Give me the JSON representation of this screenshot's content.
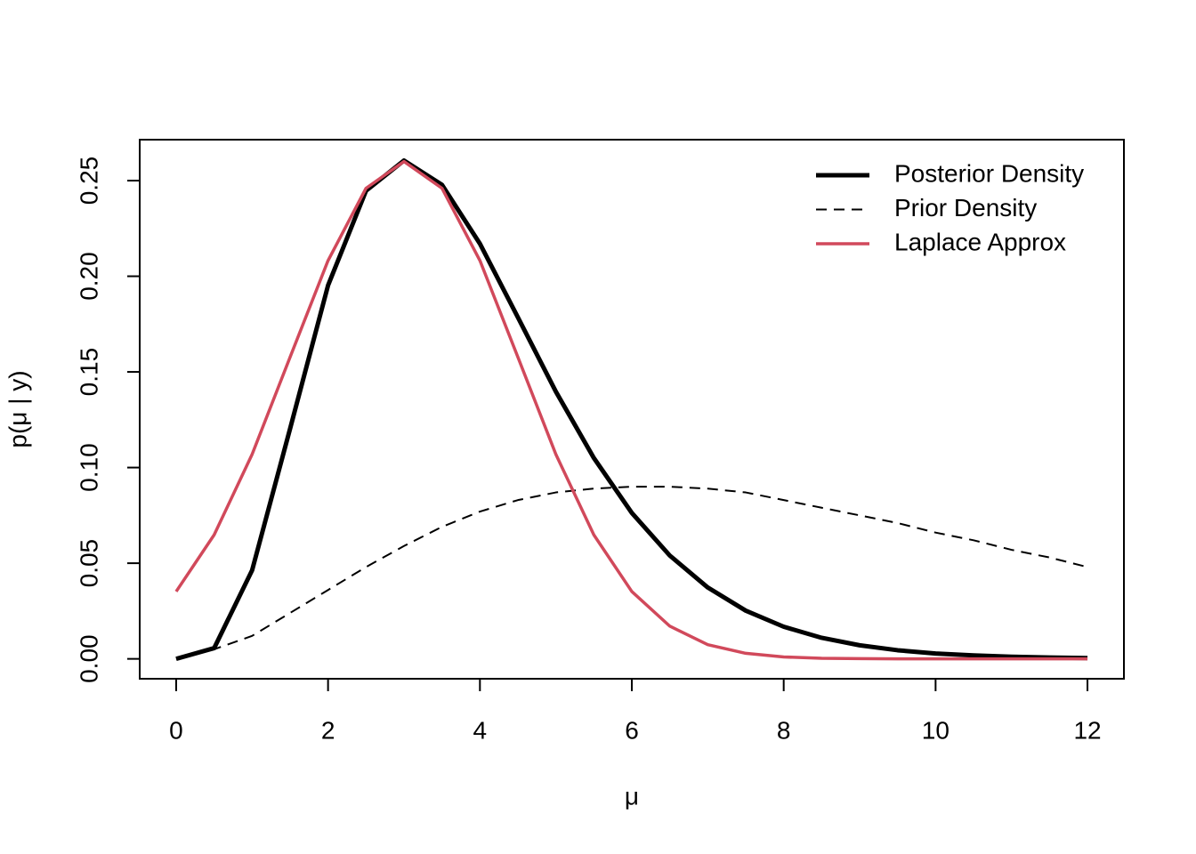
{
  "chart_data": {
    "type": "line",
    "xlabel": "μ",
    "ylabel": "p(μ | y)",
    "x": [
      0,
      0.5,
      1,
      1.5,
      2,
      2.5,
      3,
      3.5,
      4,
      4.5,
      5,
      5.5,
      6,
      6.5,
      7,
      7.5,
      8,
      8.5,
      9,
      9.5,
      10,
      10.5,
      11,
      11.5,
      12
    ],
    "series": [
      {
        "name": "Posterior Density",
        "color": "#000000",
        "width": 5,
        "dash": false,
        "values": [
          0,
          0.0056,
          0.0463,
          0.1203,
          0.1952,
          0.2447,
          0.2605,
          0.2478,
          0.217,
          0.1785,
          0.1397,
          0.105,
          0.0763,
          0.054,
          0.0373,
          0.0252,
          0.0168,
          0.011,
          0.0071,
          0.0045,
          0.0028,
          0.0018,
          0.0011,
          0.0007,
          0.0004
        ]
      },
      {
        "name": "Prior Density",
        "color": "#000000",
        "width": 2,
        "dash": true,
        "values": [
          0,
          0.005,
          0.012,
          0.024,
          0.036,
          0.048,
          0.059,
          0.069,
          0.077,
          0.083,
          0.087,
          0.089,
          0.09,
          0.09,
          0.089,
          0.087,
          0.083,
          0.079,
          0.075,
          0.071,
          0.066,
          0.062,
          0.057,
          0.053,
          0.048
        ]
      },
      {
        "name": "Laplace Approx",
        "color": "#d1495b",
        "width": 3.5,
        "dash": false,
        "values": [
          0.0352,
          0.0648,
          0.1069,
          0.1577,
          0.2082,
          0.246,
          0.26,
          0.246,
          0.2082,
          0.1577,
          0.1069,
          0.0648,
          0.0352,
          0.0171,
          0.0074,
          0.0029,
          0.001,
          0.0003,
          0.0001,
          0,
          0,
          0,
          0,
          0,
          0
        ]
      }
    ],
    "xlim": [
      -0.48,
      12.48
    ],
    "ylim": [
      -0.0104,
      0.2714
    ],
    "xticks": [
      0,
      2,
      4,
      6,
      8,
      10,
      12
    ],
    "yticks": [
      {
        "value": 0,
        "label": "0.00"
      },
      {
        "value": 0.05,
        "label": "0.05"
      },
      {
        "value": 0.1,
        "label": "0.10"
      },
      {
        "value": 0.15,
        "label": "0.15"
      },
      {
        "value": 0.2,
        "label": "0.20"
      },
      {
        "value": 0.25,
        "label": "0.25"
      }
    ],
    "legend": "top-right",
    "grid": false
  }
}
